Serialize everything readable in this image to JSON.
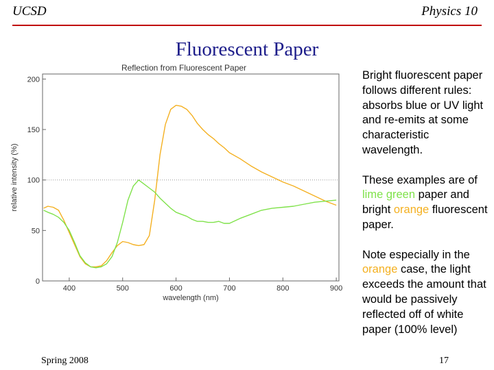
{
  "header": {
    "left": "UCSD",
    "right": "Physics 10"
  },
  "slide_title": "Fluorescent Paper",
  "paragraphs": {
    "p1": "Bright fluorescent paper follows different rules: absorbs blue or UV light and re-emits at some characteristic wavelength.",
    "p2": {
      "a": "These examples are of ",
      "lime": "lime green",
      "b": " paper and bright ",
      "orange": "orange",
      "c": " fluorescent paper."
    },
    "p3": {
      "a": "Note especially in the ",
      "orange": "orange",
      "b": " case, the light exceeds the amount that would be passively reflected off of white paper (100% level)"
    }
  },
  "footer": {
    "left": "Spring 2008",
    "right": "17"
  },
  "colors": {
    "title": "#1d1d8a",
    "rule": "#c00000",
    "lime": "#7fe24a",
    "orange": "#f4b020"
  },
  "chart_data": {
    "type": "line",
    "title": "Reflection from Fluorescent Paper",
    "xlabel": "wavelength (nm)",
    "ylabel": "relative intensity (%)",
    "xlim": [
      350,
      905
    ],
    "ylim": [
      0,
      205
    ],
    "xticks": [
      400,
      500,
      600,
      700,
      800,
      900
    ],
    "yticks": [
      0,
      50,
      100,
      150,
      200
    ],
    "reference_line": {
      "y": 100,
      "style": "dotted"
    },
    "series": [
      {
        "color": "#f4b020",
        "x": [
          352,
          360,
          370,
          380,
          390,
          400,
          410,
          420,
          430,
          440,
          450,
          460,
          470,
          480,
          490,
          500,
          510,
          520,
          530,
          540,
          550,
          560,
          570,
          580,
          590,
          600,
          610,
          620,
          630,
          640,
          650,
          660,
          670,
          680,
          690,
          700,
          720,
          740,
          760,
          780,
          800,
          820,
          840,
          860,
          880,
          900
        ],
        "y": [
          72,
          74,
          73,
          70,
          60,
          48,
          36,
          24,
          17,
          14,
          14,
          15,
          20,
          28,
          35,
          39,
          38,
          36,
          35,
          36,
          45,
          80,
          125,
          155,
          170,
          174,
          173,
          170,
          164,
          156,
          150,
          145,
          141,
          136,
          132,
          127,
          121,
          114,
          108,
          103,
          98,
          94,
          89,
          84,
          79,
          75
        ]
      },
      {
        "color": "#7fe24a",
        "x": [
          352,
          360,
          370,
          380,
          390,
          400,
          410,
          420,
          430,
          440,
          450,
          460,
          470,
          480,
          490,
          500,
          510,
          520,
          530,
          540,
          550,
          560,
          570,
          580,
          590,
          600,
          610,
          620,
          630,
          640,
          650,
          660,
          670,
          680,
          690,
          700,
          720,
          740,
          760,
          780,
          800,
          820,
          840,
          860,
          880,
          900
        ],
        "y": [
          70,
          68,
          66,
          63,
          58,
          50,
          38,
          25,
          18,
          14,
          13,
          14,
          17,
          24,
          38,
          58,
          80,
          94,
          100,
          96,
          92,
          88,
          82,
          77,
          72,
          68,
          66,
          64,
          61,
          59,
          59,
          58,
          58,
          59,
          57,
          57,
          62,
          66,
          70,
          72,
          73,
          74,
          76,
          78,
          79,
          80
        ]
      }
    ]
  }
}
